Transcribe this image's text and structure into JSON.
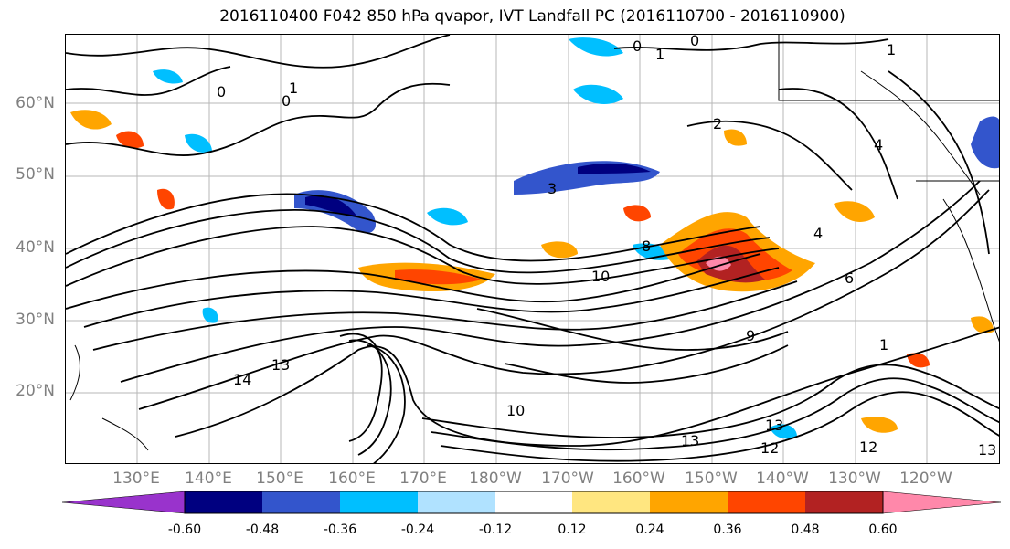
{
  "title": "2016110400 F042 850 hPa qvapor, IVT Landfall PC (2016110700 - 2016110900)",
  "map": {
    "lat_labels": [
      "60°N",
      "50°N",
      "40°N",
      "30°N",
      "20°N"
    ],
    "lon_labels": [
      "130°E",
      "140°E",
      "150°E",
      "160°E",
      "170°E",
      "180°W",
      "170°W",
      "160°W",
      "150°W",
      "140°W",
      "130°W",
      "120°W"
    ],
    "contour_labels": [
      "0",
      "0",
      "1",
      "1",
      "0",
      "0",
      "1",
      "2",
      "4",
      "3",
      "4",
      "6",
      "8",
      "9",
      "10",
      "13",
      "14",
      "13",
      "10",
      "12",
      "13",
      "12",
      "13",
      "1"
    ]
  },
  "colorbar": {
    "colors": [
      "#9933cc",
      "#000080",
      "#3355cc",
      "#00bfff",
      "#b0e2ff",
      "#ffffff",
      "#ffe680",
      "#ffa500",
      "#ff4500",
      "#b22222",
      "#ff88aa"
    ],
    "tick_labels": [
      "-0.60",
      "-0.48",
      "-0.36",
      "-0.24",
      "-0.12",
      "0.12",
      "0.24",
      "0.36",
      "0.48",
      "0.60"
    ]
  }
}
